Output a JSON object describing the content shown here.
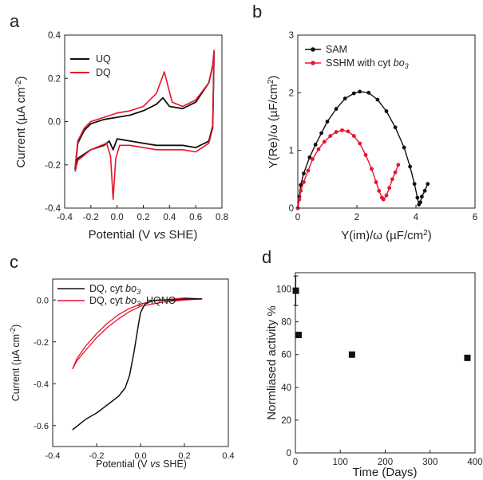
{
  "chart_data": [
    {
      "panel": "a",
      "type": "line",
      "xlabel": "Potential (V vs SHE)",
      "ylabel": "Current (µA cm⁻²)",
      "xlim": [
        -0.4,
        0.8
      ],
      "ylim": [
        -0.4,
        0.4
      ],
      "xticks": [
        "-0.4",
        "-0.2",
        "0.0",
        "0.2",
        "0.4",
        "0.6",
        "0.8"
      ],
      "yticks": [
        "-0.4",
        "-0.2",
        "0.0",
        "0.2",
        "0.4"
      ],
      "series": [
        {
          "name": "UQ",
          "color": "#111111",
          "x": [
            -0.32,
            -0.3,
            -0.25,
            -0.2,
            -0.1,
            0.0,
            0.1,
            0.2,
            0.3,
            0.35,
            0.4,
            0.5,
            0.6,
            0.7,
            0.73,
            0.74,
            0.73,
            0.7,
            0.6,
            0.5,
            0.4,
            0.3,
            0.2,
            0.1,
            0.0,
            -0.03,
            -0.06,
            -0.1,
            -0.2,
            -0.3,
            -0.32
          ],
          "y": [
            -0.22,
            -0.1,
            -0.04,
            -0.01,
            0.01,
            0.02,
            0.03,
            0.05,
            0.08,
            0.11,
            0.07,
            0.06,
            0.09,
            0.18,
            0.26,
            0.32,
            -0.02,
            -0.09,
            -0.12,
            -0.11,
            -0.11,
            -0.11,
            -0.1,
            -0.09,
            -0.08,
            -0.13,
            -0.09,
            -0.11,
            -0.13,
            -0.17,
            -0.23
          ]
        },
        {
          "name": "DQ",
          "color": "#e8142c",
          "x": [
            -0.32,
            -0.3,
            -0.25,
            -0.2,
            -0.1,
            0.0,
            0.1,
            0.2,
            0.3,
            0.36,
            0.42,
            0.5,
            0.6,
            0.7,
            0.73,
            0.74,
            0.73,
            0.7,
            0.6,
            0.5,
            0.4,
            0.3,
            0.2,
            0.1,
            0.02,
            -0.01,
            -0.03,
            -0.05,
            -0.08,
            -0.2,
            -0.3,
            -0.32
          ],
          "y": [
            -0.21,
            -0.09,
            -0.03,
            0.0,
            0.02,
            0.04,
            0.05,
            0.07,
            0.13,
            0.23,
            0.09,
            0.07,
            0.1,
            0.18,
            0.26,
            0.33,
            -0.03,
            -0.1,
            -0.14,
            -0.13,
            -0.13,
            -0.13,
            -0.12,
            -0.11,
            -0.11,
            -0.17,
            -0.36,
            -0.16,
            -0.1,
            -0.13,
            -0.18,
            -0.23
          ]
        }
      ]
    },
    {
      "panel": "b",
      "type": "line",
      "xlabel": "Y(im)/ω (µF/cm²)",
      "ylabel": "Y(Re)/ω (µF/cm²)",
      "xlim": [
        0,
        6
      ],
      "ylim": [
        0,
        3
      ],
      "xticks": [
        "0",
        "2",
        "4",
        "6"
      ],
      "yticks": [
        "0",
        "1",
        "2",
        "3"
      ],
      "series": [
        {
          "name": "SAM",
          "color": "#111111",
          "x": [
            0.0,
            0.05,
            0.1,
            0.2,
            0.4,
            0.6,
            0.8,
            1.0,
            1.3,
            1.6,
            1.9,
            2.1,
            2.4,
            2.7,
            3.0,
            3.3,
            3.6,
            3.8,
            3.95,
            4.05,
            4.1,
            4.15,
            4.2,
            4.3,
            4.4
          ],
          "y": [
            0.0,
            0.2,
            0.4,
            0.6,
            0.88,
            1.1,
            1.3,
            1.5,
            1.72,
            1.9,
            1.99,
            2.02,
            2.0,
            1.88,
            1.68,
            1.4,
            1.05,
            0.72,
            0.42,
            0.18,
            0.06,
            0.1,
            0.2,
            0.3,
            0.42
          ]
        },
        {
          "name": "SSHM with cyt bo3",
          "color": "#e8142c",
          "x": [
            0.0,
            0.05,
            0.1,
            0.2,
            0.35,
            0.5,
            0.7,
            0.9,
            1.1,
            1.3,
            1.5,
            1.7,
            1.9,
            2.1,
            2.3,
            2.5,
            2.65,
            2.75,
            2.85,
            2.9,
            3.0,
            3.1,
            3.2,
            3.3,
            3.4
          ],
          "y": [
            0.0,
            0.15,
            0.3,
            0.45,
            0.65,
            0.85,
            1.02,
            1.15,
            1.25,
            1.32,
            1.35,
            1.33,
            1.25,
            1.12,
            0.92,
            0.68,
            0.45,
            0.3,
            0.18,
            0.15,
            0.22,
            0.35,
            0.5,
            0.62,
            0.75
          ]
        }
      ]
    },
    {
      "panel": "c",
      "type": "line",
      "xlabel": "Potential (V vs SHE)",
      "ylabel": "Current (µA cm⁻²)",
      "xlim": [
        -0.4,
        0.4
      ],
      "ylim": [
        -0.7,
        0.1
      ],
      "xticks": [
        "-0.4",
        "-0.2",
        "0.0",
        "0.2",
        "0.4"
      ],
      "yticks": [
        "-0.6",
        "-0.4",
        "-0.2",
        "0.0"
      ],
      "series": [
        {
          "name": "DQ, cyt bo3",
          "color": "#111111",
          "x": [
            -0.31,
            -0.25,
            -0.2,
            -0.15,
            -0.1,
            -0.07,
            -0.05,
            -0.03,
            -0.01,
            0.0,
            0.02,
            0.05,
            0.08,
            0.1,
            0.15,
            0.2,
            0.28
          ],
          "y": [
            -0.62,
            -0.57,
            -0.54,
            -0.5,
            -0.46,
            -0.42,
            -0.36,
            -0.25,
            -0.12,
            -0.06,
            -0.02,
            -0.005,
            0.0,
            0.0,
            0.0,
            0.005,
            0.005
          ]
        },
        {
          "name": "DQ, cyt bo3, HQNO",
          "color": "#e8142c",
          "x": [
            -0.31,
            -0.29,
            -0.25,
            -0.2,
            -0.15,
            -0.1,
            -0.05,
            0.0,
            0.05,
            0.1,
            0.15,
            0.2,
            0.28,
            0.2,
            0.1,
            0.05,
            0.0,
            -0.05,
            -0.1,
            -0.15,
            -0.2,
            -0.25,
            -0.29,
            -0.31
          ],
          "y": [
            -0.33,
            -0.28,
            -0.22,
            -0.16,
            -0.11,
            -0.07,
            -0.04,
            -0.02,
            -0.005,
            0.0,
            0.005,
            0.01,
            0.005,
            0.0,
            -0.01,
            -0.02,
            -0.03,
            -0.055,
            -0.09,
            -0.13,
            -0.18,
            -0.24,
            -0.29,
            -0.33
          ]
        }
      ]
    },
    {
      "panel": "d",
      "type": "scatter",
      "xlabel": "Time (Days)",
      "ylabel": "Normliased activity %",
      "xlim": [
        0,
        400
      ],
      "ylim": [
        0,
        110
      ],
      "xticks": [
        "0",
        "100",
        "200",
        "300",
        "400"
      ],
      "yticks": [
        "0",
        "20",
        "40",
        "60",
        "80",
        "100"
      ],
      "series": [
        {
          "color": "#111111",
          "x": [
            1,
            7,
            126,
            383
          ],
          "y": [
            99,
            72,
            60,
            58
          ],
          "error": [
            9,
            0,
            0,
            0
          ]
        }
      ]
    }
  ]
}
